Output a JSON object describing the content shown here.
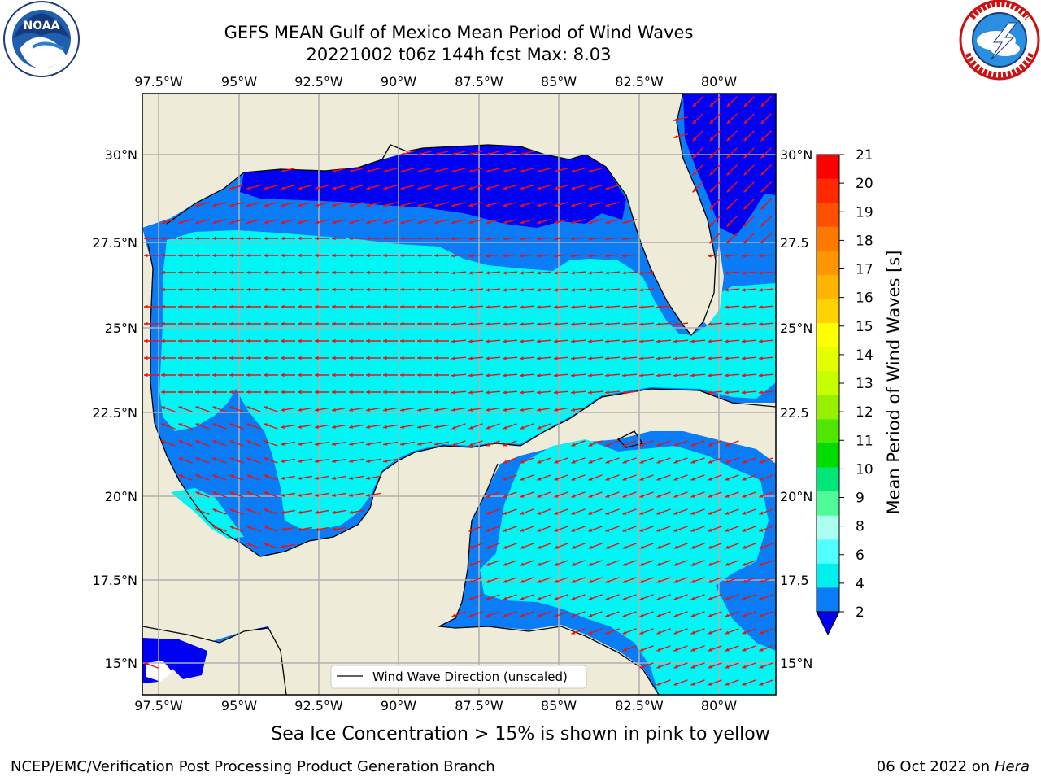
{
  "header": {
    "title_line1": "GEFS MEAN Gulf of Mexico Mean Period of Wind Waves",
    "title_line2": "20221002 t06z 144h fcst   Max: 8.03"
  },
  "logos": {
    "left": {
      "name": "NOAA",
      "ring_text": "NATIONAL OCEANIC AND ATMOSPHERIC ADMINISTRATION · U.S. DEPARTMENT OF COMMERCE"
    },
    "right": {
      "name": "NATIONAL WEATHER SERVICE"
    }
  },
  "map": {
    "lon_labels": [
      "97.5°W",
      "95°W",
      "92.5°W",
      "90°W",
      "87.5°W",
      "85°W",
      "82.5°W",
      "80°W"
    ],
    "lat_labels_left": [
      "30°N",
      "27.5°N",
      "25°N",
      "22.5°N",
      "20°N",
      "17.5°N",
      "15°N"
    ],
    "lat_labels_right": [
      "30°N",
      "27.5",
      "25°N",
      "22.5",
      "20°N",
      "17.5",
      "15°N"
    ],
    "legend_label": "Wind Wave Direction (unscaled)",
    "colors": {
      "land": "#eeebd8",
      "ocean_low": "#0000f2",
      "ocean_mid": "#0a7cf5",
      "ocean_high": "#00f5f5",
      "arrow": "#ee1111",
      "grid": "#b0b0b0"
    }
  },
  "colorbar": {
    "label": "Mean Period of Wind Waves [s]",
    "ticks": [
      "21",
      "20",
      "19",
      "18",
      "17",
      "16",
      "15",
      "14",
      "13",
      "12",
      "11",
      "10",
      "9",
      "8",
      "6",
      "4",
      "2"
    ],
    "colors": [
      "#ff0000",
      "#ff2800",
      "#ff5000",
      "#ff7800",
      "#ff9600",
      "#ffb400",
      "#ffd200",
      "#ffff00",
      "#e6ff00",
      "#c8ff00",
      "#96f000",
      "#50e600",
      "#00dc00",
      "#00e678",
      "#50fa96",
      "#aaffee",
      "#50ffff",
      "#00f0f0",
      "#0a7cf5"
    ],
    "extend_color": "#0000f2"
  },
  "note": "Sea Ice Concentration > 15% is shown in pink to yellow",
  "footer": {
    "left": "NCEP/EMC/Verification Post Processing Product Generation Branch",
    "right_prefix": "06 Oct 2022 on ",
    "right_host": "Hera"
  }
}
